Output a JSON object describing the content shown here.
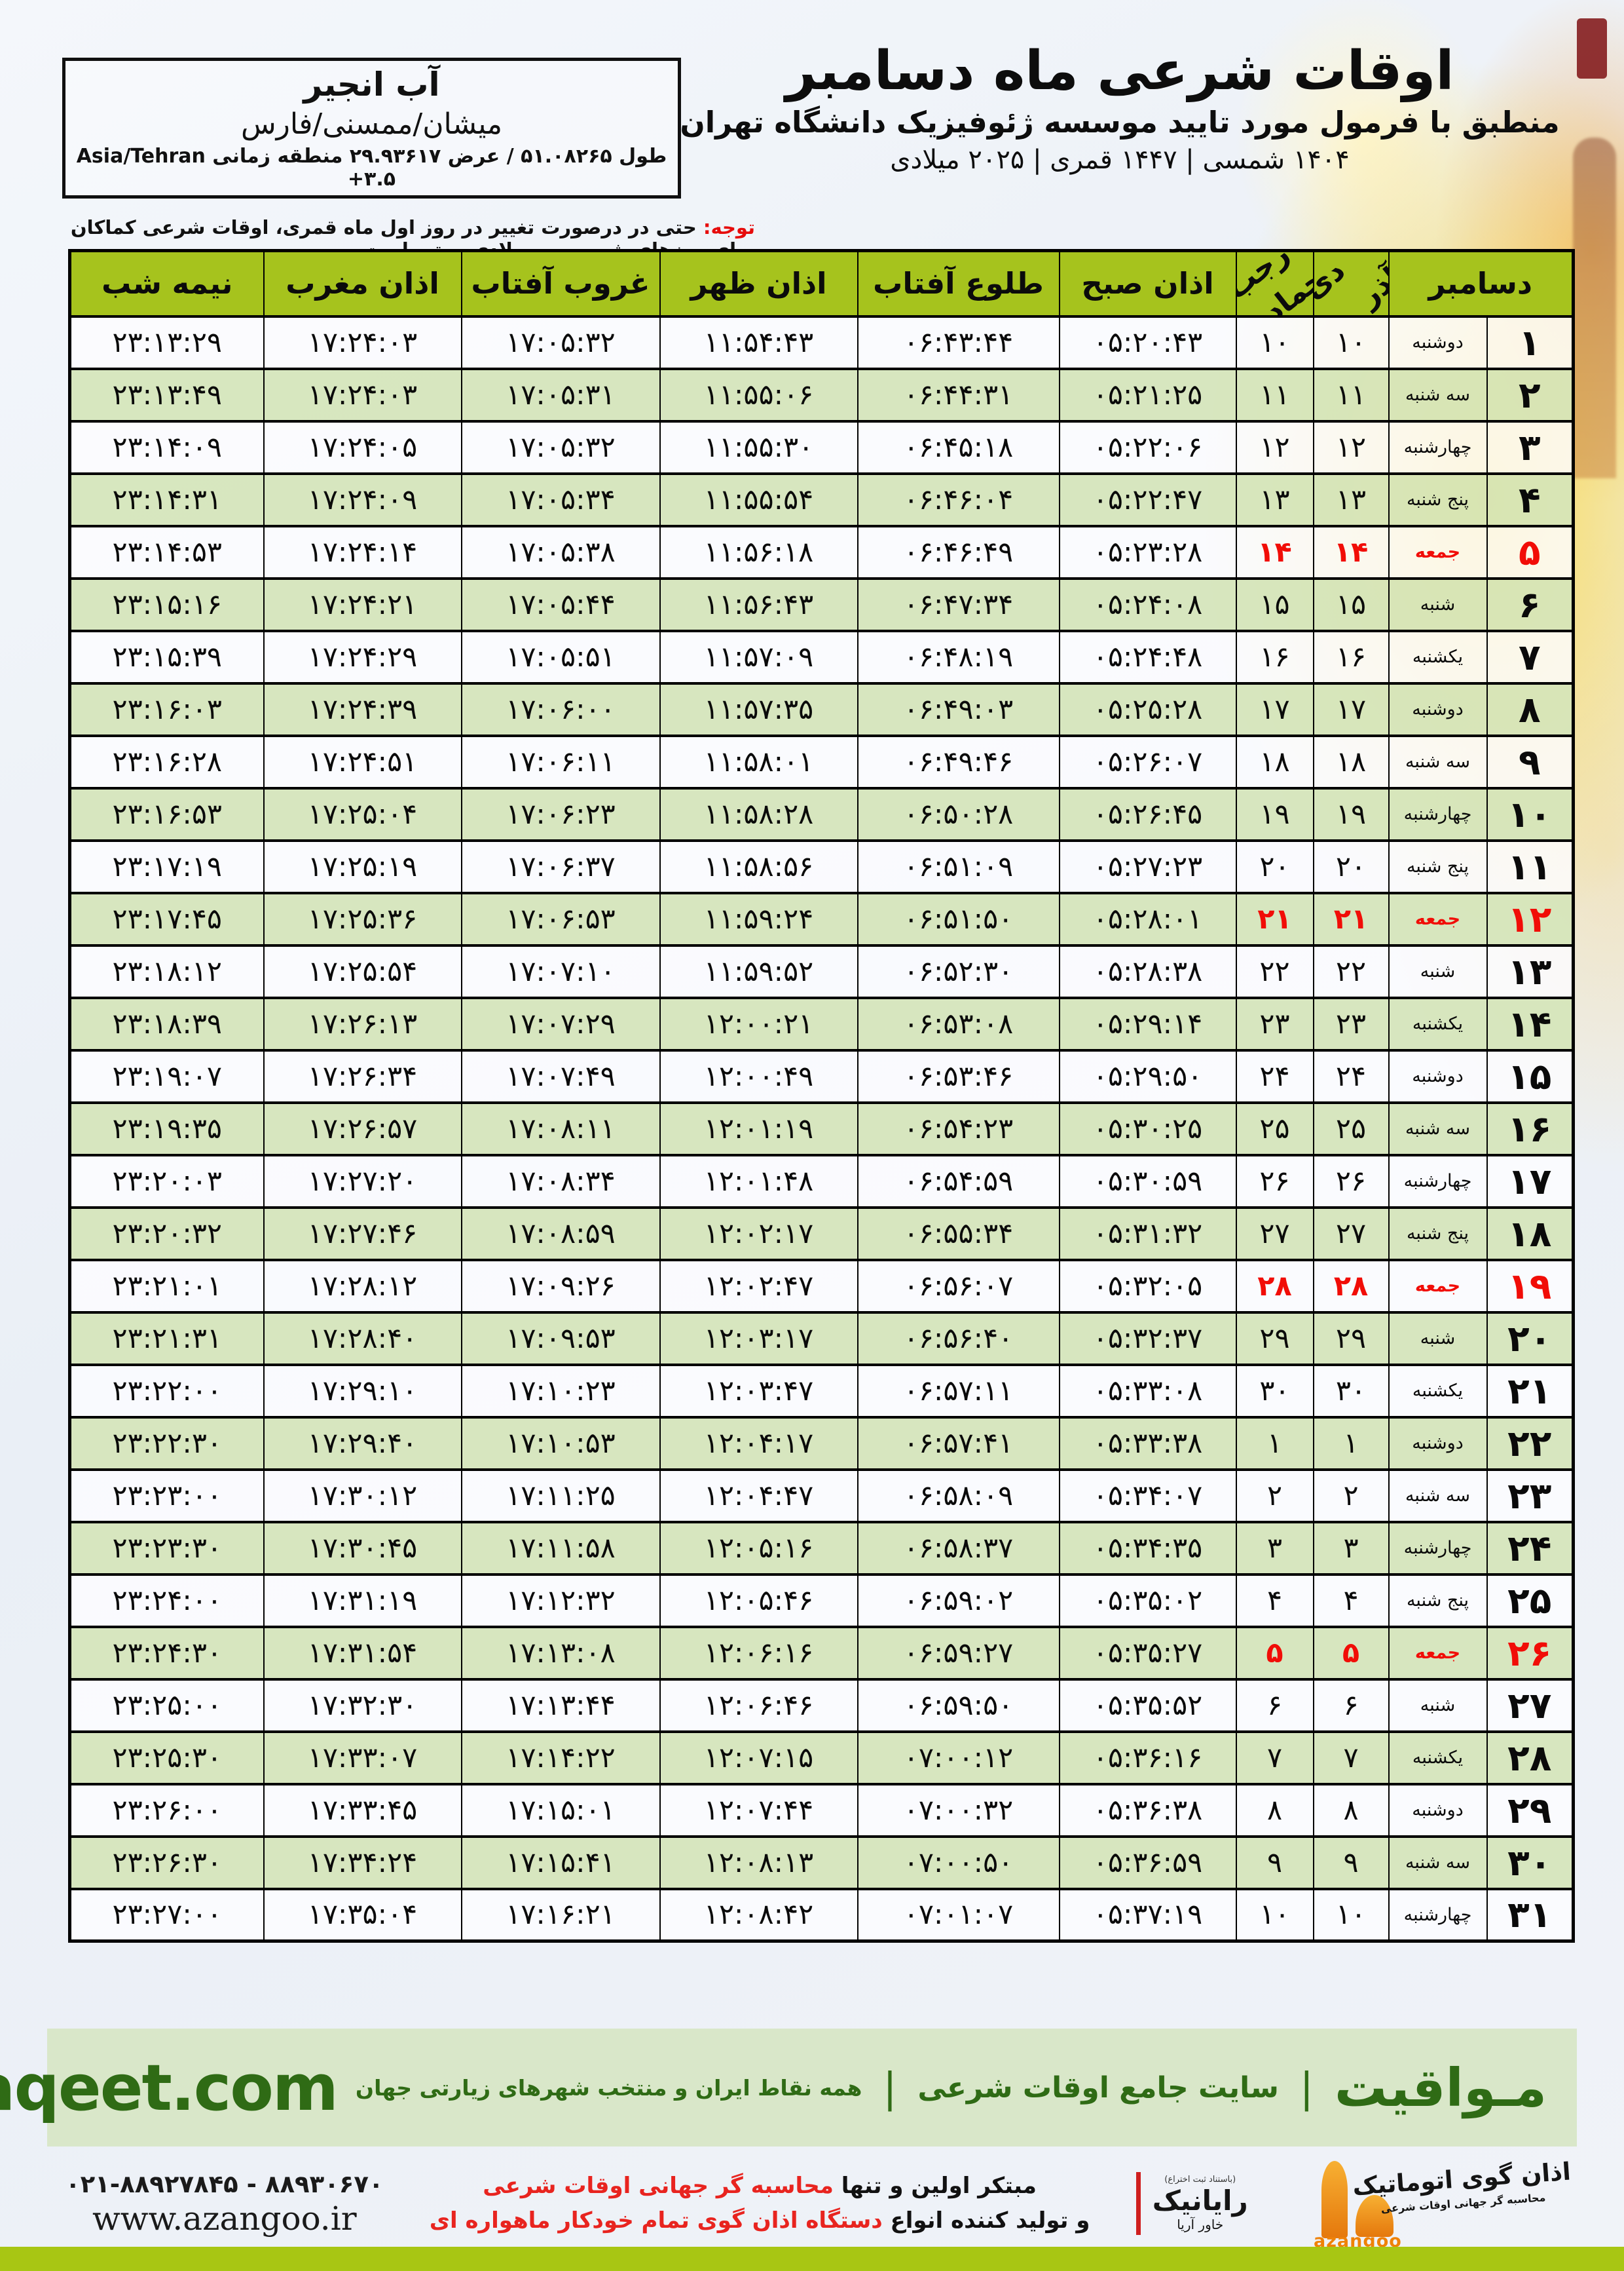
{
  "colors": {
    "header_green": "#a6c31d",
    "row_green": "#d5e5ba",
    "friday_red": "#f10d07",
    "footer_bar_green": "#d9e7c9",
    "footer_text_green": "#2f6b15",
    "bottom_bar_green": "#a8c613",
    "azangoo_orange": "#ef8207"
  },
  "header": {
    "title": "اوقات شرعی ماه دسامبر",
    "subtitle": "منطبق با فرمول مورد تایید موسسه ژئوفیزیک دانشگاه تهران",
    "years": "۱۴۰۴ شمسی | ۱۴۴۷ قمری | ۲۰۲۵ میلادی"
  },
  "location": {
    "name": "آب انجیر",
    "region": "میشان/ممسنی/فارس",
    "coords": "طول ۵۱.۰۸۲۶۵ / عرض ۲۹.۹۳۶۱۷ منطقه زمانی Asia/Tehran +۳.۵"
  },
  "notice": {
    "label": "توجه:",
    "text": " حتی در درصورت تغییر در روز اول ماه قمری، اوقات شرعی کماکان برای روزهای شمسی و میلادی معتبر است."
  },
  "table": {
    "headers": {
      "december": "دسامبر",
      "jalali_top": "آذر",
      "jalali_bottom": "دی",
      "hijri_top": "جمادی الثانی",
      "hijri_bottom": "رجب",
      "sobh": "اذان صبح",
      "tolu": "طلوع آفتاب",
      "zohr": "اذان ظهر",
      "ghorub": "غروب آفتاب",
      "maghreb": "اذان مغرب",
      "nimeshab": "نیمه شب"
    },
    "rows": [
      {
        "day": "۱",
        "weekday": "دوشنبه",
        "jalali": "۱۰",
        "hijri": "۱۰",
        "sobh": "۰۵:۲۰:۴۳",
        "tolu": "۰۶:۴۳:۴۴",
        "zohr": "۱۱:۵۴:۴۳",
        "ghorub": "۱۷:۰۵:۳۲",
        "maghreb": "۱۷:۲۴:۰۳",
        "nimeshab": "۲۳:۱۳:۲۹",
        "friday": false
      },
      {
        "day": "۲",
        "weekday": "سه شنبه",
        "jalali": "۱۱",
        "hijri": "۱۱",
        "sobh": "۰۵:۲۱:۲۵",
        "tolu": "۰۶:۴۴:۳۱",
        "zohr": "۱۱:۵۵:۰۶",
        "ghorub": "۱۷:۰۵:۳۱",
        "maghreb": "۱۷:۲۴:۰۳",
        "nimeshab": "۲۳:۱۳:۴۹",
        "friday": false
      },
      {
        "day": "۳",
        "weekday": "چهارشنبه",
        "jalali": "۱۲",
        "hijri": "۱۲",
        "sobh": "۰۵:۲۲:۰۶",
        "tolu": "۰۶:۴۵:۱۸",
        "zohr": "۱۱:۵۵:۳۰",
        "ghorub": "۱۷:۰۵:۳۲",
        "maghreb": "۱۷:۲۴:۰۵",
        "nimeshab": "۲۳:۱۴:۰۹",
        "friday": false
      },
      {
        "day": "۴",
        "weekday": "پنج شنبه",
        "jalali": "۱۳",
        "hijri": "۱۳",
        "sobh": "۰۵:۲۲:۴۷",
        "tolu": "۰۶:۴۶:۰۴",
        "zohr": "۱۱:۵۵:۵۴",
        "ghorub": "۱۷:۰۵:۳۴",
        "maghreb": "۱۷:۲۴:۰۹",
        "nimeshab": "۲۳:۱۴:۳۱",
        "friday": false
      },
      {
        "day": "۵",
        "weekday": "جمعه",
        "jalali": "۱۴",
        "hijri": "۱۴",
        "sobh": "۰۵:۲۳:۲۸",
        "tolu": "۰۶:۴۶:۴۹",
        "zohr": "۱۱:۵۶:۱۸",
        "ghorub": "۱۷:۰۵:۳۸",
        "maghreb": "۱۷:۲۴:۱۴",
        "nimeshab": "۲۳:۱۴:۵۳",
        "friday": true
      },
      {
        "day": "۶",
        "weekday": "شنبه",
        "jalali": "۱۵",
        "hijri": "۱۵",
        "sobh": "۰۵:۲۴:۰۸",
        "tolu": "۰۶:۴۷:۳۴",
        "zohr": "۱۱:۵۶:۴۳",
        "ghorub": "۱۷:۰۵:۴۴",
        "maghreb": "۱۷:۲۴:۲۱",
        "nimeshab": "۲۳:۱۵:۱۶",
        "friday": false
      },
      {
        "day": "۷",
        "weekday": "یکشنبه",
        "jalali": "۱۶",
        "hijri": "۱۶",
        "sobh": "۰۵:۲۴:۴۸",
        "tolu": "۰۶:۴۸:۱۹",
        "zohr": "۱۱:۵۷:۰۹",
        "ghorub": "۱۷:۰۵:۵۱",
        "maghreb": "۱۷:۲۴:۲۹",
        "nimeshab": "۲۳:۱۵:۳۹",
        "friday": false
      },
      {
        "day": "۸",
        "weekday": "دوشنبه",
        "jalali": "۱۷",
        "hijri": "۱۷",
        "sobh": "۰۵:۲۵:۲۸",
        "tolu": "۰۶:۴۹:۰۳",
        "zohr": "۱۱:۵۷:۳۵",
        "ghorub": "۱۷:۰۶:۰۰",
        "maghreb": "۱۷:۲۴:۳۹",
        "nimeshab": "۲۳:۱۶:۰۳",
        "friday": false
      },
      {
        "day": "۹",
        "weekday": "سه شنبه",
        "jalali": "۱۸",
        "hijri": "۱۸",
        "sobh": "۰۵:۲۶:۰۷",
        "tolu": "۰۶:۴۹:۴۶",
        "zohr": "۱۱:۵۸:۰۱",
        "ghorub": "۱۷:۰۶:۱۱",
        "maghreb": "۱۷:۲۴:۵۱",
        "nimeshab": "۲۳:۱۶:۲۸",
        "friday": false
      },
      {
        "day": "۱۰",
        "weekday": "چهارشنبه",
        "jalali": "۱۹",
        "hijri": "۱۹",
        "sobh": "۰۵:۲۶:۴۵",
        "tolu": "۰۶:۵۰:۲۸",
        "zohr": "۱۱:۵۸:۲۸",
        "ghorub": "۱۷:۰۶:۲۳",
        "maghreb": "۱۷:۲۵:۰۴",
        "nimeshab": "۲۳:۱۶:۵۳",
        "friday": false
      },
      {
        "day": "۱۱",
        "weekday": "پنج شنبه",
        "jalali": "۲۰",
        "hijri": "۲۰",
        "sobh": "۰۵:۲۷:۲۳",
        "tolu": "۰۶:۵۱:۰۹",
        "zohr": "۱۱:۵۸:۵۶",
        "ghorub": "۱۷:۰۶:۳۷",
        "maghreb": "۱۷:۲۵:۱۹",
        "nimeshab": "۲۳:۱۷:۱۹",
        "friday": false
      },
      {
        "day": "۱۲",
        "weekday": "جمعه",
        "jalali": "۲۱",
        "hijri": "۲۱",
        "sobh": "۰۵:۲۸:۰۱",
        "tolu": "۰۶:۵۱:۵۰",
        "zohr": "۱۱:۵۹:۲۴",
        "ghorub": "۱۷:۰۶:۵۳",
        "maghreb": "۱۷:۲۵:۳۶",
        "nimeshab": "۲۳:۱۷:۴۵",
        "friday": true
      },
      {
        "day": "۱۳",
        "weekday": "شنبه",
        "jalali": "۲۲",
        "hijri": "۲۲",
        "sobh": "۰۵:۲۸:۳۸",
        "tolu": "۰۶:۵۲:۳۰",
        "zohr": "۱۱:۵۹:۵۲",
        "ghorub": "۱۷:۰۷:۱۰",
        "maghreb": "۱۷:۲۵:۵۴",
        "nimeshab": "۲۳:۱۸:۱۲",
        "friday": false
      },
      {
        "day": "۱۴",
        "weekday": "یکشنبه",
        "jalali": "۲۳",
        "hijri": "۲۳",
        "sobh": "۰۵:۲۹:۱۴",
        "tolu": "۰۶:۵۳:۰۸",
        "zohr": "۱۲:۰۰:۲۱",
        "ghorub": "۱۷:۰۷:۲۹",
        "maghreb": "۱۷:۲۶:۱۳",
        "nimeshab": "۲۳:۱۸:۳۹",
        "friday": false
      },
      {
        "day": "۱۵",
        "weekday": "دوشنبه",
        "jalali": "۲۴",
        "hijri": "۲۴",
        "sobh": "۰۵:۲۹:۵۰",
        "tolu": "۰۶:۵۳:۴۶",
        "zohr": "۱۲:۰۰:۴۹",
        "ghorub": "۱۷:۰۷:۴۹",
        "maghreb": "۱۷:۲۶:۳۴",
        "nimeshab": "۲۳:۱۹:۰۷",
        "friday": false
      },
      {
        "day": "۱۶",
        "weekday": "سه شنبه",
        "jalali": "۲۵",
        "hijri": "۲۵",
        "sobh": "۰۵:۳۰:۲۵",
        "tolu": "۰۶:۵۴:۲۳",
        "zohr": "۱۲:۰۱:۱۹",
        "ghorub": "۱۷:۰۸:۱۱",
        "maghreb": "۱۷:۲۶:۵۷",
        "nimeshab": "۲۳:۱۹:۳۵",
        "friday": false
      },
      {
        "day": "۱۷",
        "weekday": "چهارشنبه",
        "jalali": "۲۶",
        "hijri": "۲۶",
        "sobh": "۰۵:۳۰:۵۹",
        "tolu": "۰۶:۵۴:۵۹",
        "zohr": "۱۲:۰۱:۴۸",
        "ghorub": "۱۷:۰۸:۳۴",
        "maghreb": "۱۷:۲۷:۲۰",
        "nimeshab": "۲۳:۲۰:۰۳",
        "friday": false
      },
      {
        "day": "۱۸",
        "weekday": "پنج شنبه",
        "jalali": "۲۷",
        "hijri": "۲۷",
        "sobh": "۰۵:۳۱:۳۲",
        "tolu": "۰۶:۵۵:۳۴",
        "zohr": "۱۲:۰۲:۱۷",
        "ghorub": "۱۷:۰۸:۵۹",
        "maghreb": "۱۷:۲۷:۴۶",
        "nimeshab": "۲۳:۲۰:۳۲",
        "friday": false
      },
      {
        "day": "۱۹",
        "weekday": "جمعه",
        "jalali": "۲۸",
        "hijri": "۲۸",
        "sobh": "۰۵:۳۲:۰۵",
        "tolu": "۰۶:۵۶:۰۷",
        "zohr": "۱۲:۰۲:۴۷",
        "ghorub": "۱۷:۰۹:۲۶",
        "maghreb": "۱۷:۲۸:۱۲",
        "nimeshab": "۲۳:۲۱:۰۱",
        "friday": true
      },
      {
        "day": "۲۰",
        "weekday": "شنبه",
        "jalali": "۲۹",
        "hijri": "۲۹",
        "sobh": "۰۵:۳۲:۳۷",
        "tolu": "۰۶:۵۶:۴۰",
        "zohr": "۱۲:۰۳:۱۷",
        "ghorub": "۱۷:۰۹:۵۳",
        "maghreb": "۱۷:۲۸:۴۰",
        "nimeshab": "۲۳:۲۱:۳۱",
        "friday": false
      },
      {
        "day": "۲۱",
        "weekday": "یکشنبه",
        "jalali": "۳۰",
        "hijri": "۳۰",
        "sobh": "۰۵:۳۳:۰۸",
        "tolu": "۰۶:۵۷:۱۱",
        "zohr": "۱۲:۰۳:۴۷",
        "ghorub": "۱۷:۱۰:۲۳",
        "maghreb": "۱۷:۲۹:۱۰",
        "nimeshab": "۲۳:۲۲:۰۰",
        "friday": false
      },
      {
        "day": "۲۲",
        "weekday": "دوشنبه",
        "jalali": "۱",
        "hijri": "۱",
        "sobh": "۰۵:۳۳:۳۸",
        "tolu": "۰۶:۵۷:۴۱",
        "zohr": "۱۲:۰۴:۱۷",
        "ghorub": "۱۷:۱۰:۵۳",
        "maghreb": "۱۷:۲۹:۴۰",
        "nimeshab": "۲۳:۲۲:۳۰",
        "friday": false
      },
      {
        "day": "۲۳",
        "weekday": "سه شنبه",
        "jalali": "۲",
        "hijri": "۲",
        "sobh": "۰۵:۳۴:۰۷",
        "tolu": "۰۶:۵۸:۰۹",
        "zohr": "۱۲:۰۴:۴۷",
        "ghorub": "۱۷:۱۱:۲۵",
        "maghreb": "۱۷:۳۰:۱۲",
        "nimeshab": "۲۳:۲۳:۰۰",
        "friday": false
      },
      {
        "day": "۲۴",
        "weekday": "چهارشنبه",
        "jalali": "۳",
        "hijri": "۳",
        "sobh": "۰۵:۳۴:۳۵",
        "tolu": "۰۶:۵۸:۳۷",
        "zohr": "۱۲:۰۵:۱۶",
        "ghorub": "۱۷:۱۱:۵۸",
        "maghreb": "۱۷:۳۰:۴۵",
        "nimeshab": "۲۳:۲۳:۳۰",
        "friday": false
      },
      {
        "day": "۲۵",
        "weekday": "پنج شنبه",
        "jalali": "۴",
        "hijri": "۴",
        "sobh": "۰۵:۳۵:۰۲",
        "tolu": "۰۶:۵۹:۰۲",
        "zohr": "۱۲:۰۵:۴۶",
        "ghorub": "۱۷:۱۲:۳۲",
        "maghreb": "۱۷:۳۱:۱۹",
        "nimeshab": "۲۳:۲۴:۰۰",
        "friday": false
      },
      {
        "day": "۲۶",
        "weekday": "جمعه",
        "jalali": "۵",
        "hijri": "۵",
        "sobh": "۰۵:۳۵:۲۷",
        "tolu": "۰۶:۵۹:۲۷",
        "zohr": "۱۲:۰۶:۱۶",
        "ghorub": "۱۷:۱۳:۰۸",
        "maghreb": "۱۷:۳۱:۵۴",
        "nimeshab": "۲۳:۲۴:۳۰",
        "friday": true
      },
      {
        "day": "۲۷",
        "weekday": "شنبه",
        "jalali": "۶",
        "hijri": "۶",
        "sobh": "۰۵:۳۵:۵۲",
        "tolu": "۰۶:۵۹:۵۰",
        "zohr": "۱۲:۰۶:۴۶",
        "ghorub": "۱۷:۱۳:۴۴",
        "maghreb": "۱۷:۳۲:۳۰",
        "nimeshab": "۲۳:۲۵:۰۰",
        "friday": false
      },
      {
        "day": "۲۸",
        "weekday": "یکشنبه",
        "jalali": "۷",
        "hijri": "۷",
        "sobh": "۰۵:۳۶:۱۶",
        "tolu": "۰۷:۰۰:۱۲",
        "zohr": "۱۲:۰۷:۱۵",
        "ghorub": "۱۷:۱۴:۲۲",
        "maghreb": "۱۷:۳۳:۰۷",
        "nimeshab": "۲۳:۲۵:۳۰",
        "friday": false
      },
      {
        "day": "۲۹",
        "weekday": "دوشنبه",
        "jalali": "۸",
        "hijri": "۸",
        "sobh": "۰۵:۳۶:۳۸",
        "tolu": "۰۷:۰۰:۳۲",
        "zohr": "۱۲:۰۷:۴۴",
        "ghorub": "۱۷:۱۵:۰۱",
        "maghreb": "۱۷:۳۳:۴۵",
        "nimeshab": "۲۳:۲۶:۰۰",
        "friday": false
      },
      {
        "day": "۳۰",
        "weekday": "سه شنبه",
        "jalali": "۹",
        "hijri": "۹",
        "sobh": "۰۵:۳۶:۵۹",
        "tolu": "۰۷:۰۰:۵۰",
        "zohr": "۱۲:۰۸:۱۳",
        "ghorub": "۱۷:۱۵:۴۱",
        "maghreb": "۱۷:۳۴:۲۴",
        "nimeshab": "۲۳:۲۶:۳۰",
        "friday": false
      },
      {
        "day": "۳۱",
        "weekday": "چهارشنبه",
        "jalali": "۱۰",
        "hijri": "۱۰",
        "sobh": "۰۵:۳۷:۱۹",
        "tolu": "۰۷:۰۱:۰۷",
        "zohr": "۱۲:۰۸:۴۲",
        "ghorub": "۱۷:۱۶:۲۱",
        "maghreb": "۱۷:۳۵:۰۴",
        "nimeshab": "۲۳:۲۷:۰۰",
        "friday": false
      }
    ]
  },
  "footer_bar": {
    "brand": "مـواقیت",
    "sep": "|",
    "tagline1": "سایت جامع اوقات شرعی",
    "tagline2": "همه نقاط ایران و منتخب شهرهای زیارتی جهان",
    "site": "mavaqeet.com"
  },
  "footer_bottom": {
    "phone": "۰۲۱-۸۸۹۲۷۸۴۵ - ۸۸۹۳۰۶۷۰",
    "website": "www.azangoo.ir",
    "line1_prefix": "مبتکر اولین و تنها ",
    "line1_highlight": "محاسبه گر جهانی اوقات شرعی",
    "line2_prefix": "و تولید کننده انواع ",
    "line2_highlight": "دستگاه اذان گوی تمام خودکار ماهواره ای",
    "rayanik_note": "(باستناد ثبت اختراع)",
    "rayanik_name": "رایانیک",
    "rayanik_sub": "خاور آریا",
    "azangoo_title": "اذان گوی اتوماتیک",
    "azangoo_sub": "محاسبه گر جهانی اوقات شرعی",
    "azangoo_latin": "azangoo"
  }
}
